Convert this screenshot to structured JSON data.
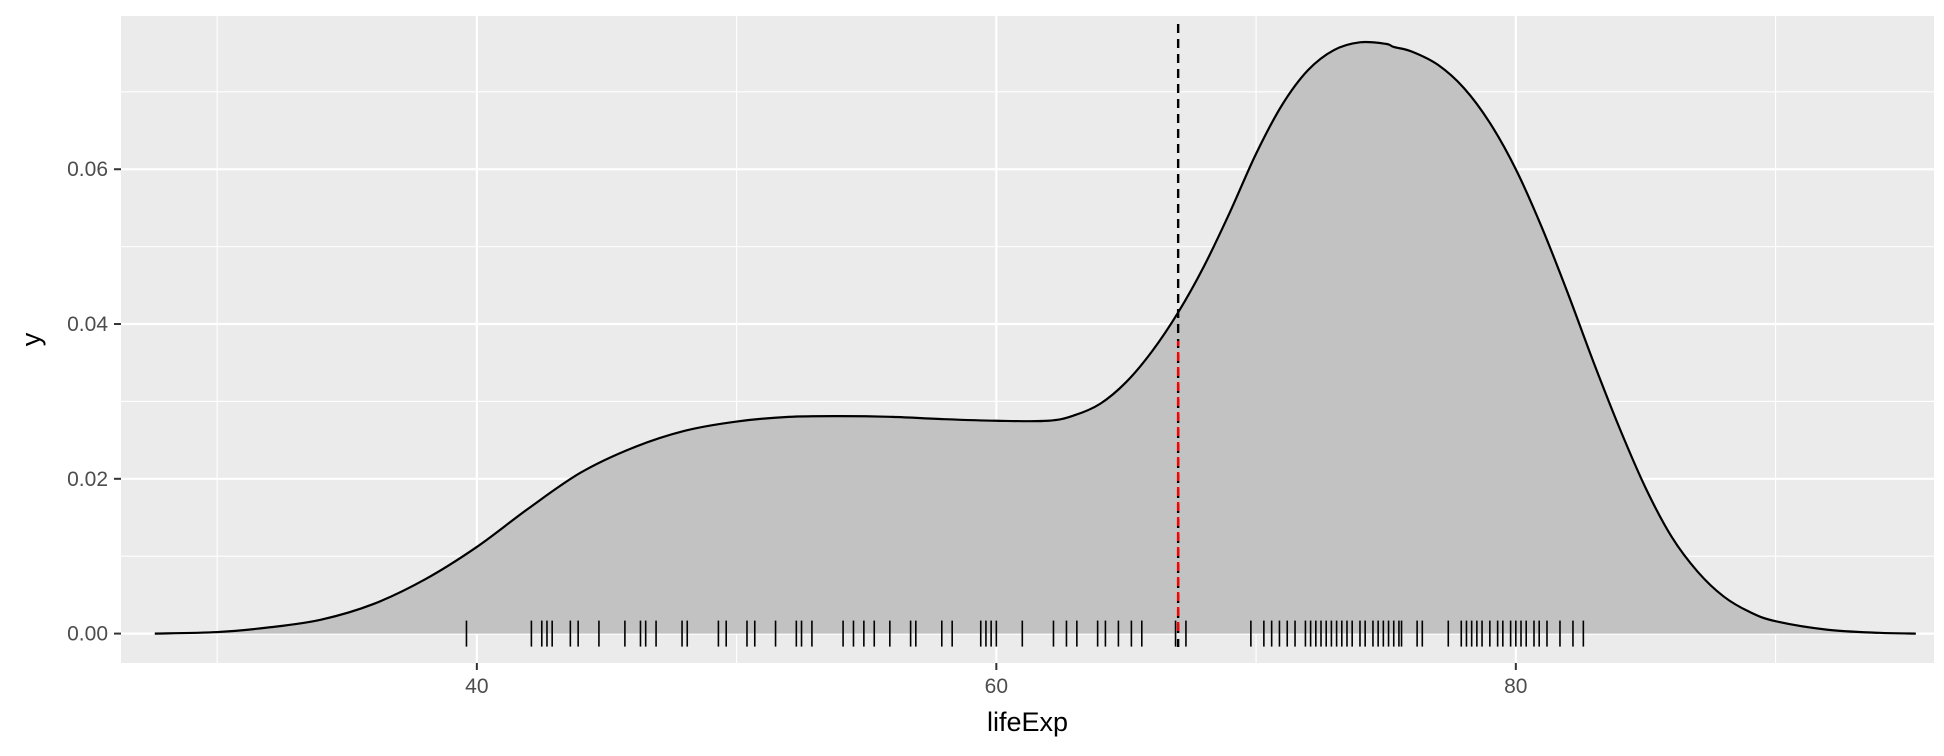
{
  "chart_data": {
    "type": "area",
    "xlabel": "lifeExp",
    "ylabel": "y",
    "xlim": [
      26.3,
      96.1
    ],
    "ylim": [
      -0.0038,
      0.0798
    ],
    "x_ticks": [
      40,
      60,
      80
    ],
    "x_tick_labels": [
      "40",
      "60",
      "80"
    ],
    "y_ticks": [
      0.0,
      0.02,
      0.04,
      0.06
    ],
    "y_tick_labels": [
      "0.00",
      "0.02",
      "0.04",
      "0.06"
    ],
    "grid": true,
    "density": {
      "x": [
        27.6,
        30,
        32,
        34,
        36,
        38,
        40,
        42,
        44,
        46,
        48,
        50,
        52,
        54,
        56,
        58,
        60,
        62,
        63,
        64,
        65,
        66,
        67,
        68,
        69,
        70,
        71,
        72,
        73,
        74,
        75,
        75.3,
        76,
        77,
        78,
        79,
        80,
        81,
        82,
        83,
        84,
        85,
        86,
        87,
        88,
        89,
        90,
        92,
        94,
        95.4
      ],
      "y": [
        0.0,
        0.0002,
        0.0008,
        0.0018,
        0.0038,
        0.007,
        0.0112,
        0.0162,
        0.0208,
        0.024,
        0.0262,
        0.0274,
        0.028,
        0.0281,
        0.028,
        0.0277,
        0.0275,
        0.0275,
        0.0282,
        0.0297,
        0.0325,
        0.0365,
        0.0415,
        0.0475,
        0.0545,
        0.062,
        0.0683,
        0.0728,
        0.0754,
        0.0764,
        0.0762,
        0.0758,
        0.0752,
        0.0735,
        0.0705,
        0.066,
        0.06,
        0.0525,
        0.044,
        0.035,
        0.0265,
        0.0188,
        0.0125,
        0.008,
        0.0048,
        0.0028,
        0.0016,
        0.0005,
        0.0001,
        0.0
      ]
    },
    "rug": [
      39.6,
      42.1,
      42.5,
      42.7,
      42.9,
      43.6,
      43.9,
      44.7,
      45.7,
      46.3,
      46.5,
      46.9,
      47.9,
      48.1,
      49.3,
      49.6,
      50.4,
      50.7,
      51.5,
      52.3,
      52.5,
      52.9,
      54.1,
      54.5,
      54.9,
      55.3,
      55.9,
      56.7,
      56.9,
      57.9,
      58.3,
      59.4,
      59.6,
      59.8,
      60.0,
      61.0,
      62.2,
      62.7,
      63.1,
      63.9,
      64.2,
      64.7,
      65.2,
      65.6,
      66.9,
      67.3,
      69.8,
      70.3,
      70.6,
      70.9,
      71.2,
      71.5,
      71.9,
      72.1,
      72.3,
      72.5,
      72.7,
      72.9,
      73.1,
      73.3,
      73.5,
      73.7,
      74.0,
      74.2,
      74.5,
      74.7,
      74.9,
      75.1,
      75.3,
      75.5,
      75.6,
      76.2,
      76.4,
      77.4,
      77.9,
      78.1,
      78.3,
      78.5,
      78.7,
      79.0,
      79.3,
      79.5,
      79.8,
      80.0,
      80.2,
      80.4,
      80.7,
      80.9,
      81.2,
      81.7,
      82.2,
      82.6
    ],
    "mean_line": {
      "x": 67.0,
      "style": "dashed",
      "color": "#000000"
    },
    "mean_segment": {
      "x": 67.0,
      "y_from": 0.0,
      "y_to": 0.0378,
      "style": "dashed",
      "color": "#ff0000"
    },
    "colors": {
      "panel": "#ebebeb",
      "grid": "#ffffff",
      "fill": "#c2c2c2",
      "outline": "#000000",
      "rug": "#000000"
    }
  }
}
